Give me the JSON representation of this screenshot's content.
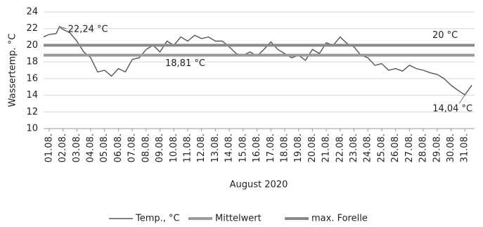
{
  "chart_data": {
    "type": "line",
    "y_label": "Wassertemp. °C",
    "x_label": "August 2020",
    "ylim": [
      10,
      24
    ],
    "yticks": [
      10,
      12,
      14,
      16,
      18,
      20,
      22,
      24
    ],
    "xlim": [
      0.6,
      31.7
    ],
    "xticks": [
      {
        "value": 1,
        "label": "01.08."
      },
      {
        "value": 2,
        "label": "02.08."
      },
      {
        "value": 3,
        "label": "03.08."
      },
      {
        "value": 4,
        "label": "04.08."
      },
      {
        "value": 5,
        "label": "05.08."
      },
      {
        "value": 6,
        "label": "06.08."
      },
      {
        "value": 7,
        "label": "07.08."
      },
      {
        "value": 8,
        "label": "08.08."
      },
      {
        "value": 9,
        "label": "09.08."
      },
      {
        "value": 10,
        "label": "10.08."
      },
      {
        "value": 11,
        "label": "11.08."
      },
      {
        "value": 12,
        "label": "12.08."
      },
      {
        "value": 13,
        "label": "13.08."
      },
      {
        "value": 14,
        "label": "14.08."
      },
      {
        "value": 15,
        "label": "15.08."
      },
      {
        "value": 16,
        "label": "16.08."
      },
      {
        "value": 17,
        "label": "17.08."
      },
      {
        "value": 18,
        "label": "18.08."
      },
      {
        "value": 19,
        "label": "19.08."
      },
      {
        "value": 20,
        "label": "20.08."
      },
      {
        "value": 21,
        "label": "21.08."
      },
      {
        "value": 22,
        "label": "22.08."
      },
      {
        "value": 23,
        "label": "23.08."
      },
      {
        "value": 24,
        "label": "24.08."
      },
      {
        "value": 25,
        "label": "25.08."
      },
      {
        "value": 26,
        "label": "26.08."
      },
      {
        "value": 27,
        "label": "27.08."
      },
      {
        "value": 28,
        "label": "28.08."
      },
      {
        "value": 29,
        "label": "29.08."
      },
      {
        "value": 30,
        "label": "30.08."
      },
      {
        "value": 31,
        "label": "31.08."
      }
    ],
    "grid": true,
    "series": [
      {
        "name": "Temp., °C",
        "color": "#555555",
        "x": [
          0.6,
          1,
          1.5,
          1.75,
          2,
          2.5,
          3,
          3.5,
          4,
          4.5,
          5,
          5.5,
          6,
          6.5,
          7,
          7.5,
          8,
          8.5,
          9,
          9.5,
          10,
          10.5,
          11,
          11.5,
          12,
          12.5,
          13,
          13.5,
          14,
          14.5,
          15,
          15.5,
          16,
          16.5,
          17,
          17.5,
          18,
          18.5,
          19,
          19.5,
          20,
          20.5,
          21,
          21.5,
          22,
          22.5,
          23,
          23.5,
          24,
          24.5,
          25,
          25.5,
          26,
          26.5,
          27,
          27.5,
          28,
          28.5,
          29,
          29.5,
          30,
          30.5,
          31,
          31.5
        ],
        "values": [
          21.0,
          21.3,
          21.4,
          22.24,
          21.9,
          21.5,
          20.5,
          19.2,
          18.5,
          16.8,
          17.0,
          16.3,
          17.2,
          16.8,
          18.3,
          18.5,
          19.5,
          20.0,
          19.2,
          20.5,
          20.0,
          21.0,
          20.5,
          21.2,
          20.8,
          21.0,
          20.5,
          20.5,
          19.8,
          19.0,
          18.8,
          19.2,
          18.7,
          19.5,
          20.4,
          19.5,
          19.0,
          18.5,
          18.8,
          18.2,
          19.5,
          19.0,
          20.3,
          20.0,
          21.0,
          20.2,
          19.8,
          18.8,
          18.5,
          17.6,
          17.8,
          17.0,
          17.2,
          16.9,
          17.6,
          17.2,
          17.0,
          16.7,
          16.5,
          16.0,
          15.2,
          14.6,
          14.04,
          15.2
        ],
        "annotations": [
          {
            "label": "22,24 °C",
            "x": 1.75,
            "value": 22.24
          },
          {
            "label": "14,04 °C",
            "x": 31,
            "value": 14.04
          }
        ]
      },
      {
        "name": "Mittelwert",
        "color": "#9a9a9a",
        "value": 18.81,
        "value_label": "18,81 °C"
      },
      {
        "name": "max. Forelle",
        "color": "#8a8a8a",
        "value": 20,
        "value_label": "20 °C"
      }
    ]
  }
}
